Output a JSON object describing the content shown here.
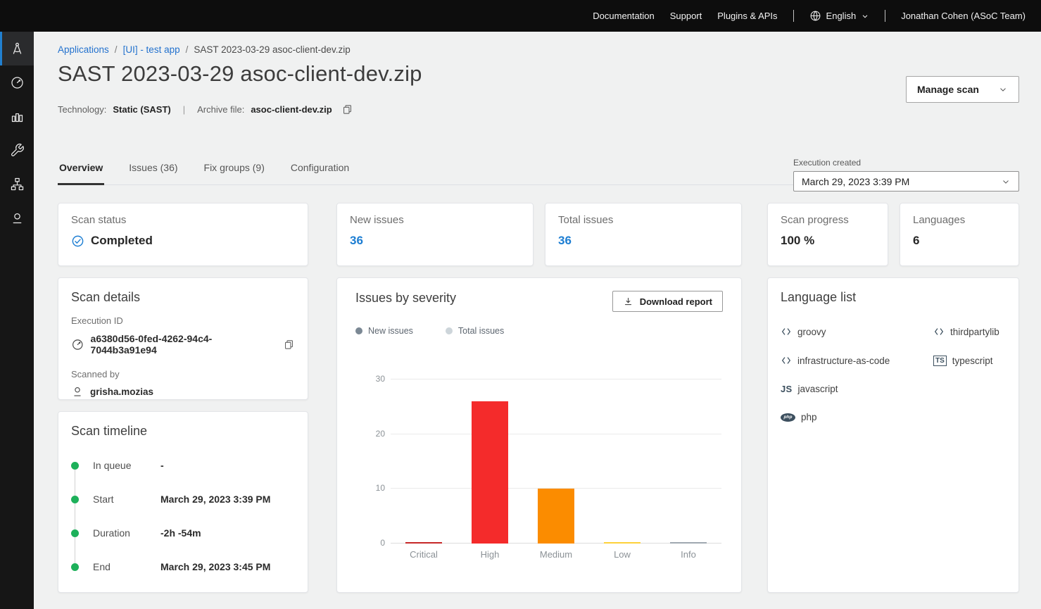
{
  "topbar": {
    "links": [
      "Documentation",
      "Support",
      "Plugins & APIs"
    ],
    "language_label": "English",
    "user_label": "Jonathan Cohen (ASoC Team)"
  },
  "sidebar": {
    "items": [
      {
        "icon": "drafting-compass",
        "active": true
      },
      {
        "icon": "gauge",
        "active": false
      },
      {
        "icon": "bar-chart",
        "active": false
      },
      {
        "icon": "wrench",
        "active": false
      },
      {
        "icon": "sitemap",
        "active": false
      },
      {
        "icon": "user",
        "active": false
      }
    ]
  },
  "breadcrumb": {
    "separator": "/",
    "items": [
      "Applications",
      "[UI] - test app",
      "SAST 2023-03-29 asoc-client-dev.zip"
    ]
  },
  "header": {
    "title": "SAST 2023-03-29 asoc-client-dev.zip",
    "manage_scan_label": "Manage scan",
    "technology_label": "Technology:",
    "technology_value": "Static (SAST)",
    "separator": "|",
    "archive_label": "Archive file:",
    "archive_value": "asoc-client-dev.zip"
  },
  "tabs": [
    {
      "label": "Overview",
      "active": true
    },
    {
      "label": "Issues (36)",
      "active": false
    },
    {
      "label": "Fix groups (9)",
      "active": false
    },
    {
      "label": "Configuration",
      "active": false
    }
  ],
  "execution_created": {
    "label": "Execution created",
    "value": "March 29, 2023 3:39 PM"
  },
  "stat_cards": {
    "scan_status": {
      "label": "Scan status",
      "value": "Completed"
    },
    "new_issues": {
      "label": "New issues",
      "value": "36"
    },
    "total_issues": {
      "label": "Total issues",
      "value": "36"
    },
    "scan_progress": {
      "label": "Scan progress",
      "value": "100 %"
    },
    "languages": {
      "label": "Languages",
      "value": "6"
    }
  },
  "scan_details": {
    "title": "Scan details",
    "execution_id_label": "Execution ID",
    "execution_id": "a6380d56-0fed-4262-94c4-7044b3a91e94",
    "scanned_by_label": "Scanned by",
    "scanned_by": "grisha.mozias"
  },
  "scan_timeline": {
    "title": "Scan timeline",
    "events": [
      {
        "label": "In queue",
        "value": "-"
      },
      {
        "label": "Start",
        "value": "March 29, 2023 3:39 PM"
      },
      {
        "label": "Duration",
        "value": "-2h -54m"
      },
      {
        "label": "End",
        "value": "March 29, 2023 3:45 PM"
      }
    ]
  },
  "severity_panel": {
    "title": "Issues by severity",
    "download_label": "Download report"
  },
  "chart_data": {
    "type": "bar",
    "title": "Issues by severity",
    "categories": [
      "Critical",
      "High",
      "Medium",
      "Low",
      "Info"
    ],
    "series": [
      {
        "name": "New issues",
        "values": [
          0,
          26,
          10,
          0,
          0
        ]
      },
      {
        "name": "Total issues",
        "values": [
          0,
          26,
          10,
          0,
          0
        ]
      }
    ],
    "bar_colors": [
      "#c62828",
      "#f42b2b",
      "#fb8c00",
      "#fdd13a",
      "#9fa8b0"
    ],
    "yticks": [
      0,
      10,
      20,
      30
    ],
    "ylim": [
      0,
      30
    ],
    "xlabel": "",
    "ylabel": "",
    "grid": true,
    "legend_position": "top-left"
  },
  "language_list": {
    "title": "Language list",
    "items": [
      {
        "label": "groovy",
        "icon": "code"
      },
      {
        "label": "thirdpartylib",
        "icon": "code"
      },
      {
        "label": "infrastructure-as-code",
        "icon": "code"
      },
      {
        "label": "typescript",
        "icon": "ts-badge"
      },
      {
        "label": "javascript",
        "icon": "js-badge"
      },
      {
        "label": "php",
        "icon": "php-badge"
      }
    ]
  },
  "colors": {
    "accent_blue": "#1c7dd2",
    "link_blue": "#2372ce",
    "success_green": "#1db05a",
    "critical": "#c62828",
    "high": "#f42b2b",
    "medium": "#fb8c00",
    "low": "#fdd13a",
    "info": "#9fa8b0"
  }
}
